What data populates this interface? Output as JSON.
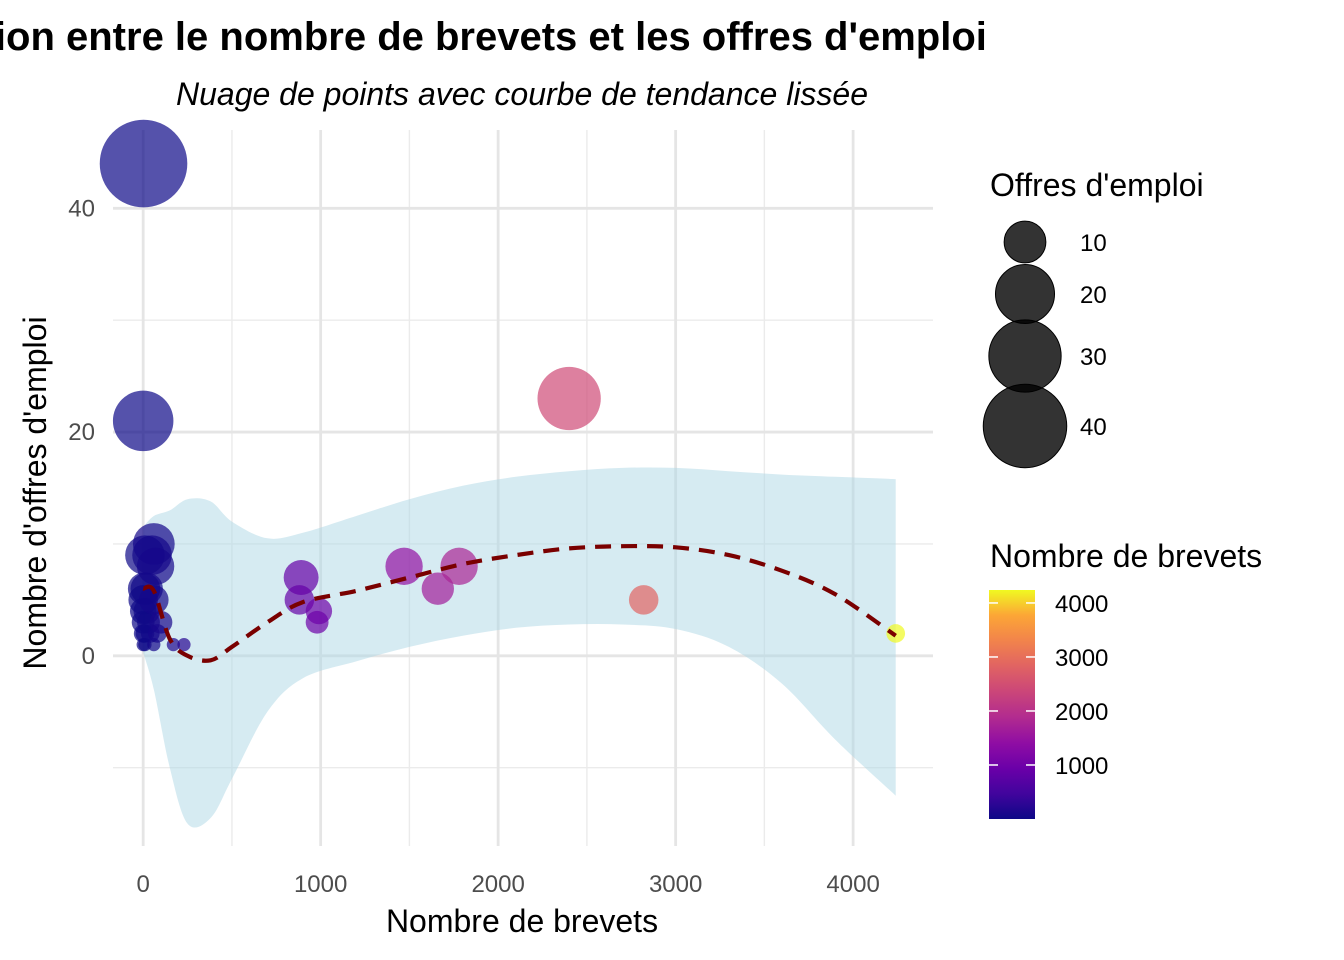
{
  "chart_data": {
    "type": "scatter",
    "title": "Relation entre le nombre de brevets et les offres d'emploi",
    "subtitle": "Nuage de points avec courbe de tendance lissée",
    "xlabel": "Nombre de brevets",
    "ylabel": "Nombre d'offres d'emploi",
    "xlim": [
      -170,
      4450
    ],
    "ylim": [
      -17,
      47
    ],
    "x_ticks": [
      0,
      1000,
      2000,
      3000,
      4000
    ],
    "x_tick_labels": [
      "0",
      "1000",
      "2000",
      "3000",
      "4000"
    ],
    "y_ticks": [
      0,
      20,
      40
    ],
    "y_tick_labels": [
      "0",
      "20",
      "40"
    ],
    "grid": true,
    "points": [
      {
        "x": 2,
        "y": 44
      },
      {
        "x": 0,
        "y": 21
      },
      {
        "x": 60,
        "y": 10
      },
      {
        "x": 50,
        "y": 9
      },
      {
        "x": 10,
        "y": 9
      },
      {
        "x": 70,
        "y": 8
      },
      {
        "x": 5,
        "y": 6
      },
      {
        "x": 20,
        "y": 6
      },
      {
        "x": 0,
        "y": 5
      },
      {
        "x": 60,
        "y": 5
      },
      {
        "x": 0,
        "y": 4
      },
      {
        "x": 20,
        "y": 4
      },
      {
        "x": 0,
        "y": 3
      },
      {
        "x": 30,
        "y": 3
      },
      {
        "x": 100,
        "y": 3
      },
      {
        "x": 0,
        "y": 2
      },
      {
        "x": 10,
        "y": 2
      },
      {
        "x": 40,
        "y": 2
      },
      {
        "x": 80,
        "y": 2
      },
      {
        "x": 0,
        "y": 1
      },
      {
        "x": 10,
        "y": 1
      },
      {
        "x": 60,
        "y": 1
      },
      {
        "x": 170,
        "y": 1
      },
      {
        "x": 230,
        "y": 1
      },
      {
        "x": 890,
        "y": 7
      },
      {
        "x": 880,
        "y": 5
      },
      {
        "x": 990,
        "y": 4
      },
      {
        "x": 980,
        "y": 3
      },
      {
        "x": 1470,
        "y": 8
      },
      {
        "x": 1660,
        "y": 6
      },
      {
        "x": 1780,
        "y": 8
      },
      {
        "x": 2400,
        "y": 23
      },
      {
        "x": 2820,
        "y": 5
      },
      {
        "x": 4240,
        "y": 2
      }
    ],
    "trend": {
      "x": [
        0,
        60,
        150,
        250,
        380,
        500,
        700,
        900,
        1200,
        1500,
        1800,
        2100,
        2400,
        2700,
        3000,
        3300,
        3600,
        3900,
        4240
      ],
      "y": [
        6,
        5.8,
        1.5,
        0,
        -0.4,
        0.8,
        3,
        4.8,
        5.8,
        7,
        8.2,
        9,
        9.6,
        9.8,
        9.7,
        9,
        7.6,
        5.5,
        1.8
      ],
      "lower": [
        0.3,
        -3,
        -10,
        -15,
        -14.5,
        -11,
        -5,
        -2,
        -0.5,
        0.8,
        1.8,
        2.5,
        2.8,
        2.8,
        2.4,
        0.8,
        -2.5,
        -7.5,
        -12.5
      ],
      "upper": [
        11.5,
        12.5,
        13,
        14,
        13.8,
        12,
        10.5,
        11,
        12.5,
        14,
        15.2,
        16,
        16.5,
        16.8,
        16.8,
        16.5,
        16.2,
        16,
        15.8
      ]
    },
    "trend_color": "#7a0000",
    "band_color": "#add8e6",
    "size_legend": {
      "title": "Offres d'emploi",
      "values": [
        10,
        20,
        30,
        40
      ],
      "labels": [
        "10",
        "20",
        "30",
        "40"
      ]
    },
    "color_legend": {
      "title": "Nombre de brevets",
      "range": [
        0,
        4240
      ],
      "ticks": [
        1000,
        2000,
        3000,
        4000
      ],
      "labels": [
        "1000",
        "2000",
        "3000",
        "4000"
      ],
      "palette": "plasma"
    }
  }
}
